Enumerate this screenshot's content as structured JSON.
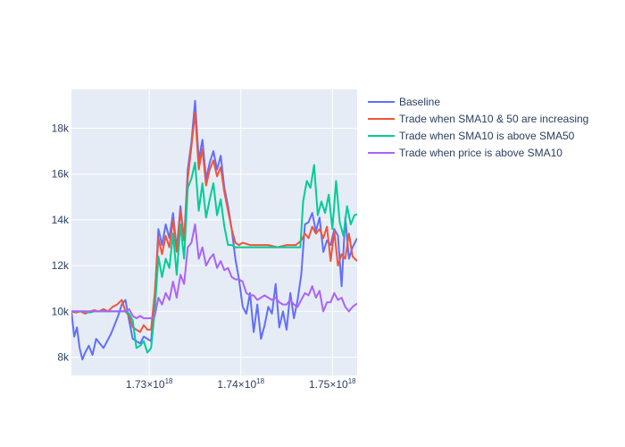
{
  "chart_data": {
    "type": "line",
    "title": "",
    "xlabel": "",
    "ylabel": "",
    "xlim": [
      1.7215e+18,
      1.7527e+18
    ],
    "ylim": [
      7200,
      19700
    ],
    "grid": true,
    "legend_position": "right",
    "x_ticks": [
      {
        "value": 1.73e+18,
        "label": "1.73×10",
        "exp": "18"
      },
      {
        "value": 1.74e+18,
        "label": "1.74×10",
        "exp": "18"
      },
      {
        "value": 1.75e+18,
        "label": "1.75×10",
        "exp": "18"
      }
    ],
    "y_ticks": [
      {
        "value": 8000,
        "label": "8k"
      },
      {
        "value": 10000,
        "label": "10k"
      },
      {
        "value": 12000,
        "label": "12k"
      },
      {
        "value": 14000,
        "label": "14k"
      },
      {
        "value": 16000,
        "label": "16k"
      },
      {
        "value": 18000,
        "label": "18k"
      }
    ],
    "series": [
      {
        "name": "Baseline",
        "color": "#636efa",
        "x": [
          1.7215e+18,
          1.7218e+18,
          1.7221e+18,
          1.7224e+18,
          1.7227e+18,
          1.723e+18,
          1.7234e+18,
          1.7238e+18,
          1.7242e+18,
          1.7246e+18,
          1.725e+18,
          1.7254e+18,
          1.7258e+18,
          1.7262e+18,
          1.7266e+18,
          1.727e+18,
          1.7274e+18,
          1.7278e+18,
          1.7282e+18,
          1.7286e+18,
          1.729e+18,
          1.7294e+18,
          1.7298e+18,
          1.7302e+18,
          1.7306e+18,
          1.731e+18,
          1.7314e+18,
          1.7318e+18,
          1.7322e+18,
          1.7326e+18,
          1.733e+18,
          1.7334e+18,
          1.7338e+18,
          1.7342e+18,
          1.7346e+18,
          1.735e+18,
          1.7354e+18,
          1.7358e+18,
          1.7362e+18,
          1.7366e+18,
          1.737e+18,
          1.7374e+18,
          1.7378e+18,
          1.7382e+18,
          1.7386e+18,
          1.739e+18,
          1.7394e+18,
          1.7398e+18,
          1.7402e+18,
          1.7406e+18,
          1.741e+18,
          1.7414e+18,
          1.7418e+18,
          1.7422e+18,
          1.7426e+18,
          1.743e+18,
          1.7434e+18,
          1.7438e+18,
          1.7442e+18,
          1.7446e+18,
          1.745e+18,
          1.7454e+18,
          1.7458e+18,
          1.7462e+18,
          1.7466e+18,
          1.747e+18,
          1.7474e+18,
          1.7478e+18,
          1.7482e+18,
          1.7486e+18,
          1.749e+18,
          1.7494e+18,
          1.7498e+18,
          1.7502e+18,
          1.7506e+18,
          1.751e+18,
          1.7514e+18,
          1.7518e+18,
          1.7522e+18,
          1.7527e+18
        ],
        "y": [
          10000,
          8900,
          9300,
          8400,
          7900,
          8200,
          8500,
          8100,
          8800,
          8600,
          8400,
          8700,
          9000,
          9400,
          9800,
          10300,
          10500,
          9600,
          8800,
          8700,
          8600,
          8900,
          8800,
          8700,
          10500,
          13600,
          12900,
          13800,
          13200,
          14300,
          12700,
          14600,
          13100,
          16200,
          17400,
          19200,
          16600,
          17500,
          15800,
          16500,
          17000,
          16200,
          16800,
          15400,
          14600,
          13600,
          12300,
          11400,
          10200,
          9900,
          10800,
          9100,
          10300,
          8800,
          9400,
          10200,
          9900,
          11200,
          9300,
          10000,
          9200,
          10800,
          9700,
          10500,
          11600,
          13800,
          13900,
          14300,
          13500,
          14100,
          12600,
          13100,
          12900,
          13600,
          13300,
          11100,
          14100,
          12300,
          12800,
          13200
        ]
      },
      {
        "name": "Trade when SMA10 & 50 are increasing",
        "color": "#ef553b",
        "x": [
          1.7215e+18,
          1.722e+18,
          1.7225e+18,
          1.723e+18,
          1.7235e+18,
          1.724e+18,
          1.7245e+18,
          1.725e+18,
          1.7255e+18,
          1.726e+18,
          1.7265e+18,
          1.727e+18,
          1.7274e+18,
          1.7278e+18,
          1.7282e+18,
          1.7286e+18,
          1.729e+18,
          1.7294e+18,
          1.7298e+18,
          1.7302e+18,
          1.7306e+18,
          1.731e+18,
          1.7314e+18,
          1.7318e+18,
          1.7322e+18,
          1.7326e+18,
          1.733e+18,
          1.7334e+18,
          1.7338e+18,
          1.7342e+18,
          1.7346e+18,
          1.735e+18,
          1.7354e+18,
          1.7358e+18,
          1.7362e+18,
          1.7366e+18,
          1.737e+18,
          1.7374e+18,
          1.7378e+18,
          1.7382e+18,
          1.7386e+18,
          1.739e+18,
          1.7394e+18,
          1.7398e+18,
          1.7402e+18,
          1.741e+18,
          1.742e+18,
          1.743e+18,
          1.744e+18,
          1.745e+18,
          1.746e+18,
          1.7466e+18,
          1.747e+18,
          1.7474e+18,
          1.7478e+18,
          1.7482e+18,
          1.7486e+18,
          1.749e+18,
          1.7494e+18,
          1.7498e+18,
          1.7502e+18,
          1.7506e+18,
          1.751e+18,
          1.7514e+18,
          1.7518e+18,
          1.7522e+18,
          1.7527e+18
        ],
        "y": [
          10000,
          9950,
          10000,
          9900,
          10000,
          10050,
          10000,
          10100,
          10000,
          10200,
          10300,
          10500,
          10000,
          9800,
          9300,
          9200,
          9100,
          9400,
          9200,
          9200,
          10800,
          13200,
          12500,
          13300,
          12800,
          14000,
          12600,
          14400,
          13100,
          15800,
          17200,
          18700,
          16200,
          17100,
          15500,
          16200,
          16600,
          15900,
          16300,
          15200,
          14400,
          13600,
          13000,
          12900,
          13000,
          12900,
          12900,
          12900,
          12800,
          12900,
          12900,
          13100,
          13400,
          13200,
          13700,
          13400,
          13600,
          13200,
          13700,
          12200,
          13500,
          12000,
          12500,
          12300,
          13400,
          12400,
          12200
        ]
      },
      {
        "name": "Trade when SMA10 is above SMA50",
        "color": "#00cc96",
        "x": [
          1.7215e+18,
          1.722e+18,
          1.7225e+18,
          1.723e+18,
          1.7235e+18,
          1.724e+18,
          1.7245e+18,
          1.725e+18,
          1.7255e+18,
          1.726e+18,
          1.7265e+18,
          1.727e+18,
          1.7274e+18,
          1.7278e+18,
          1.7282e+18,
          1.7286e+18,
          1.729e+18,
          1.7294e+18,
          1.7298e+18,
          1.7302e+18,
          1.7306e+18,
          1.731e+18,
          1.7314e+18,
          1.7318e+18,
          1.7322e+18,
          1.7326e+18,
          1.733e+18,
          1.7334e+18,
          1.7338e+18,
          1.7342e+18,
          1.7346e+18,
          1.735e+18,
          1.7354e+18,
          1.7358e+18,
          1.7362e+18,
          1.7366e+18,
          1.737e+18,
          1.7374e+18,
          1.7378e+18,
          1.7382e+18,
          1.7386e+18,
          1.739e+18,
          1.7394e+18,
          1.7398e+18,
          1.7402e+18,
          1.741e+18,
          1.742e+18,
          1.743e+18,
          1.744e+18,
          1.745e+18,
          1.746e+18,
          1.7465e+18,
          1.7468e+18,
          1.7472e+18,
          1.7476e+18,
          1.748e+18,
          1.7484e+18,
          1.7488e+18,
          1.7492e+18,
          1.7496e+18,
          1.75e+18,
          1.7504e+18,
          1.7508e+18,
          1.7512e+18,
          1.7516e+18,
          1.752e+18,
          1.7524e+18,
          1.7527e+18
        ],
        "y": [
          10000,
          10000,
          10000,
          10000,
          9950,
          10000,
          10000,
          10000,
          10000,
          10000,
          10000,
          10000,
          10000,
          9900,
          9600,
          8400,
          8500,
          8700,
          8200,
          8400,
          10000,
          12400,
          11500,
          12300,
          11900,
          13400,
          11600,
          13800,
          12300,
          15400,
          15800,
          16500,
          14400,
          15600,
          14100,
          14900,
          15600,
          14200,
          14900,
          13700,
          12900,
          12900,
          12800,
          12800,
          12800,
          12800,
          12800,
          12800,
          12800,
          12800,
          12800,
          12800,
          14800,
          15700,
          15400,
          16400,
          14200,
          14800,
          14300,
          15100,
          13600,
          15700,
          13900,
          13300,
          14600,
          13800,
          14200,
          14250
        ]
      },
      {
        "name": "Trade when price is above SMA10",
        "color": "#ab63fa",
        "x": [
          1.7215e+18,
          1.722e+18,
          1.7225e+18,
          1.723e+18,
          1.7235e+18,
          1.724e+18,
          1.7245e+18,
          1.725e+18,
          1.7255e+18,
          1.726e+18,
          1.7265e+18,
          1.727e+18,
          1.7274e+18,
          1.7278e+18,
          1.7282e+18,
          1.7286e+18,
          1.729e+18,
          1.7294e+18,
          1.7298e+18,
          1.7302e+18,
          1.7306e+18,
          1.731e+18,
          1.7314e+18,
          1.7318e+18,
          1.7322e+18,
          1.7326e+18,
          1.733e+18,
          1.7334e+18,
          1.7338e+18,
          1.7342e+18,
          1.7346e+18,
          1.735e+18,
          1.7354e+18,
          1.7358e+18,
          1.7362e+18,
          1.7366e+18,
          1.737e+18,
          1.7374e+18,
          1.7378e+18,
          1.7382e+18,
          1.7386e+18,
          1.739e+18,
          1.7394e+18,
          1.7398e+18,
          1.7402e+18,
          1.7406e+18,
          1.741e+18,
          1.7414e+18,
          1.7418e+18,
          1.7422e+18,
          1.7426e+18,
          1.743e+18,
          1.7434e+18,
          1.7438e+18,
          1.7442e+18,
          1.7446e+18,
          1.745e+18,
          1.7454e+18,
          1.7458e+18,
          1.7462e+18,
          1.7466e+18,
          1.747e+18,
          1.7474e+18,
          1.7478e+18,
          1.7482e+18,
          1.7486e+18,
          1.749e+18,
          1.7494e+18,
          1.7498e+18,
          1.7502e+18,
          1.7506e+18,
          1.751e+18,
          1.7514e+18,
          1.7518e+18,
          1.7522e+18,
          1.7527e+18
        ],
        "y": [
          10000,
          10000,
          10000,
          10000,
          10000,
          10000,
          10000,
          10000,
          10000,
          10000,
          10000,
          10000,
          10000,
          10100,
          9800,
          9700,
          9800,
          9700,
          9700,
          9700,
          9800,
          10600,
          10300,
          10800,
          10500,
          11300,
          10600,
          11600,
          11200,
          12800,
          13000,
          13800,
          12300,
          12800,
          12000,
          12300,
          12500,
          11900,
          12200,
          11800,
          11900,
          11500,
          11400,
          11400,
          11300,
          10800,
          10700,
          10700,
          10500,
          10600,
          10700,
          10600,
          10500,
          10600,
          10400,
          10300,
          10300,
          10500,
          10300,
          10200,
          10500,
          10800,
          10700,
          11100,
          10600,
          10900,
          10000,
          10400,
          10400,
          10800,
          10500,
          10600,
          10200,
          10000,
          10200,
          10350
        ]
      }
    ]
  }
}
